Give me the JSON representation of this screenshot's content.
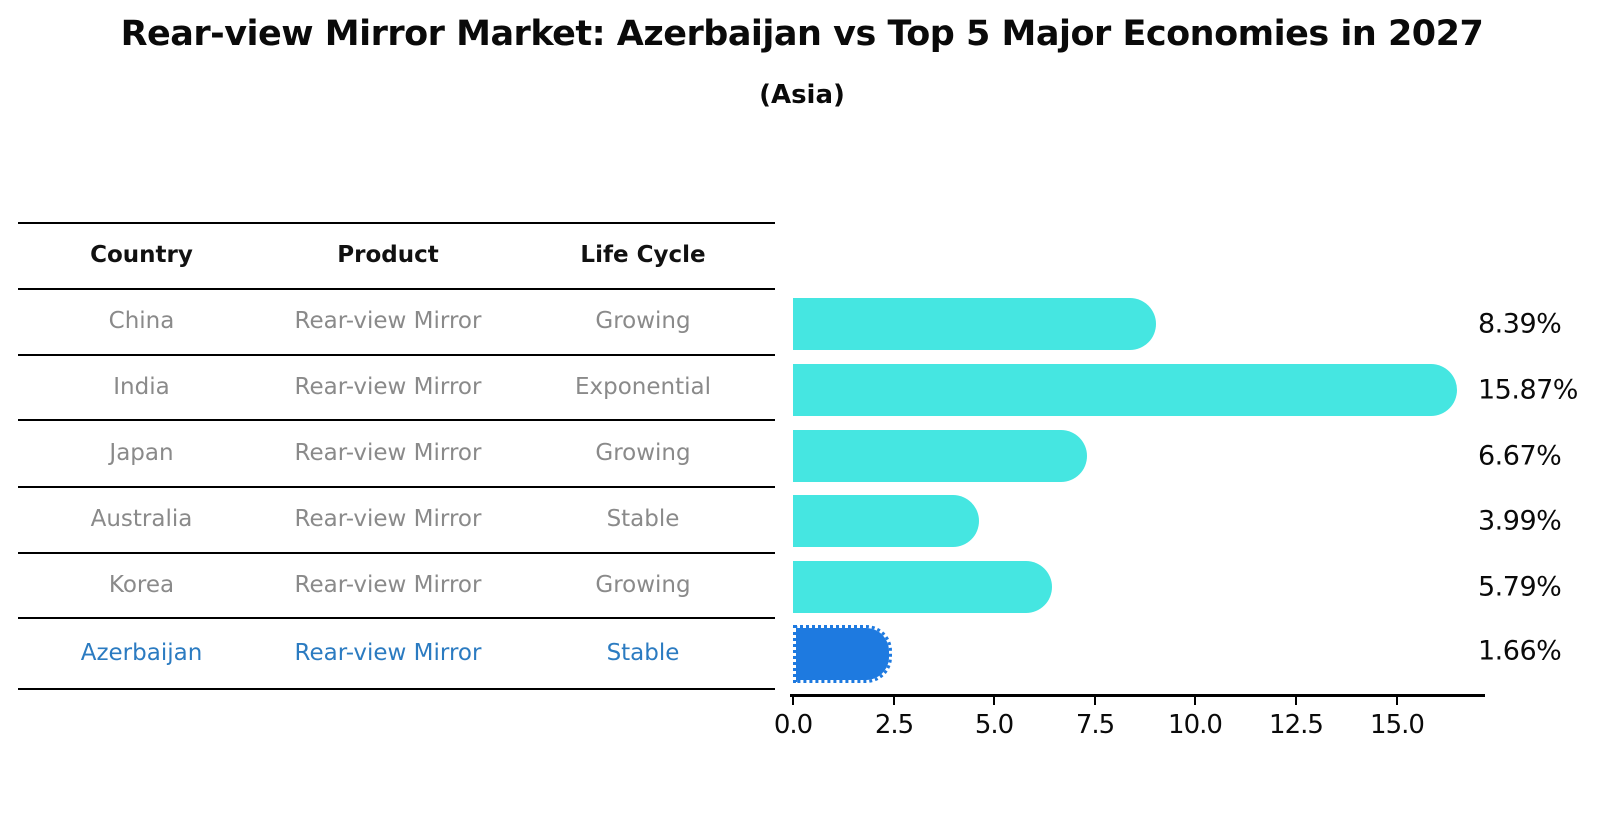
{
  "title": "Rear-view Mirror Market: Azerbaijan vs Top 5 Major Economies in 2027",
  "subtitle": "(Asia)",
  "table": {
    "headers": [
      "Country",
      "Product",
      "Life Cycle"
    ],
    "rows": [
      {
        "country": "China",
        "product": "Rear-view Mirror",
        "life_cycle": "Growing"
      },
      {
        "country": "India",
        "product": "Rear-view Mirror",
        "life_cycle": "Exponential"
      },
      {
        "country": "Japan",
        "product": "Rear-view Mirror",
        "life_cycle": "Growing"
      },
      {
        "country": "Australia",
        "product": "Rear-view Mirror",
        "life_cycle": "Stable"
      },
      {
        "country": "Korea",
        "product": "Rear-view Mirror",
        "life_cycle": "Growing"
      },
      {
        "country": "Azerbaijan",
        "product": "Rear-view Mirror",
        "life_cycle": "Stable"
      }
    ]
  },
  "chart_data": {
    "type": "bar",
    "orientation": "horizontal",
    "title": "Rear-view Mirror Market: Azerbaijan vs Top 5 Major Economies in 2027 (Asia)",
    "categories": [
      "China",
      "India",
      "Japan",
      "Australia",
      "Korea",
      "Azerbaijan"
    ],
    "values": [
      8.39,
      15.87,
      6.67,
      3.99,
      5.79,
      1.66
    ],
    "value_labels": [
      "8.39%",
      "15.87%",
      "6.67%",
      "3.99%",
      "5.79%",
      "1.66%"
    ],
    "xlabel": "",
    "ylabel": "",
    "xlim": [
      0,
      17.2
    ],
    "xticks": [
      "0.0",
      "2.5",
      "5.0",
      "7.5",
      "10.0",
      "12.5",
      "15.0"
    ],
    "grid": false,
    "legend": false,
    "highlight_category": "Azerbaijan",
    "bar_color": "#45E6E1",
    "highlight_bar_color": "#1E7AE0"
  },
  "colors": {
    "table_text": "#8a8a8a",
    "header_text": "#111111",
    "highlight_text": "#2B7BC1",
    "bar": "#45E6E1",
    "highlight_bar": "#1E7AE0"
  }
}
